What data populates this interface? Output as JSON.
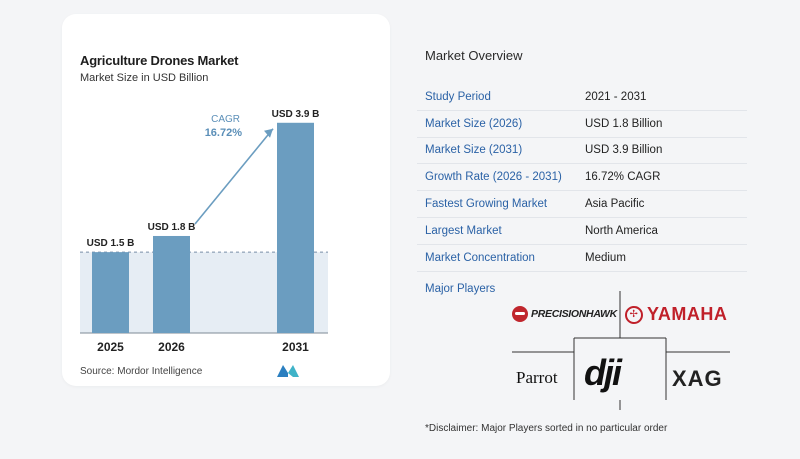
{
  "chart_data": {
    "type": "bar",
    "title": "Agriculture Drones Market",
    "subtitle": "Market Size in USD Billion",
    "categories": [
      "2025",
      "2026",
      "2031"
    ],
    "values": [
      1.5,
      1.8,
      3.9
    ],
    "value_labels": [
      "USD 1.5 B",
      "USD 1.8 B",
      "USD 3.9 B"
    ],
    "ylim": [
      0,
      4.1
    ],
    "annotation": {
      "label": "CAGR",
      "value": "16.72%"
    },
    "bar_color": "#6b9dc0",
    "baseline_fill": "#e6edf4"
  },
  "source": {
    "label": "Source:",
    "name": "Mordor Intelligence"
  },
  "overview": {
    "title": "Market Overview",
    "rows": [
      {
        "label": "Study Period",
        "value": "2021 - 2031"
      },
      {
        "label": "Market Size (2026)",
        "value": "USD 1.8 Billion"
      },
      {
        "label": "Market Size (2031)",
        "value": "USD 3.9 Billion"
      },
      {
        "label": "Growth Rate (2026 - 2031)",
        "value": "16.72% CAGR"
      },
      {
        "label": "Fastest Growing Market",
        "value": "Asia Pacific"
      },
      {
        "label": "Largest Market",
        "value": "North America"
      },
      {
        "label": "Market Concentration",
        "value": "Medium"
      }
    ]
  },
  "players": {
    "title": "Major Players",
    "names": [
      "PRECISIONHAWK",
      "YAMAHA",
      "Parrot",
      "dji",
      "XAG"
    ]
  },
  "disclaimer": "*Disclaimer: Major Players sorted in no particular order"
}
